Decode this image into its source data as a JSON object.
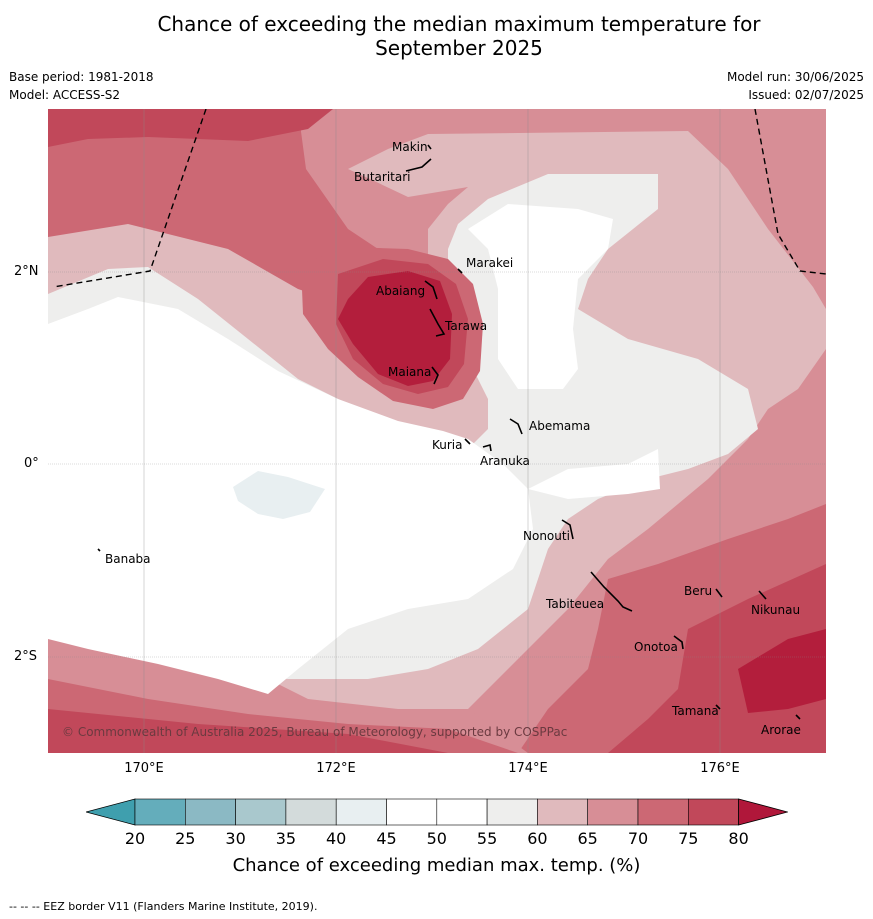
{
  "header": {
    "title_line1": "Chance of exceeding the median maximum temperature for",
    "title_line2": "September 2025",
    "base_period": "Base period: 1981-2018",
    "model": "Model: ACCESS-S2",
    "model_run": "Model run: 30/06/2025",
    "issued": "Issued: 02/07/2025"
  },
  "map": {
    "x_ticks": [
      "170°E",
      "172°E",
      "174°E",
      "176°E"
    ],
    "y_ticks": [
      "2°N",
      "0°",
      "2°S"
    ],
    "copyright": "© Commonwealth of Australia 2025, Bureau of Meteorology, supported by COSPPac",
    "places": [
      "Makin",
      "Butaritari",
      "Marakei",
      "Abaiang",
      "Tarawa",
      "Maiana",
      "Abemama",
      "Kuria",
      "Aranuka",
      "Nonouti",
      "Banaba",
      "Tabiteuea",
      "Beru",
      "Nikunau",
      "Onotoa",
      "Tamana",
      "Arorae"
    ]
  },
  "colorbar": {
    "ticks": [
      "20",
      "25",
      "30",
      "35",
      "40",
      "45",
      "50",
      "55",
      "60",
      "65",
      "70",
      "75",
      "80"
    ],
    "colors": [
      "#64adbb",
      "#8bb9c4",
      "#a9c8cd",
      "#d3dbdb",
      "#e8eff1",
      "#ffffff",
      "#ffffff",
      "#eeeeed",
      "#e0babd",
      "#d78e96",
      "#cc6874",
      "#c1485a",
      "#b31e3c"
    ],
    "under_color": "#3f9fae",
    "over_color": "#b0173a",
    "label": "Chance of exceeding median max. temp. (%)"
  },
  "footnote": "--  --  -- EEZ border V11 (Flanders Marine Institute, 2019)."
}
